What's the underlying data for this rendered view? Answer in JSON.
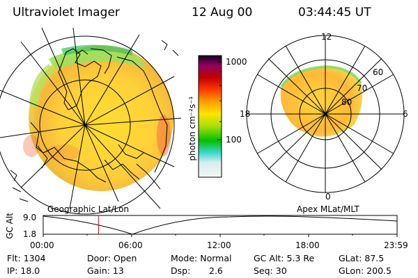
{
  "header": {
    "instrument": "Ultraviolet Imager",
    "date": "12 Aug 00",
    "time": "03:44:45 UT"
  },
  "colorbar": {
    "unit_label": "photon cm⁻²s⁻¹",
    "ticks": [
      "1000",
      "100"
    ]
  },
  "panels": {
    "geographic_label": "Geographic Lat/Lon",
    "apex_label": "Apex MLat/MLT",
    "mlt_labels": [
      "12",
      "18",
      "6",
      "0"
    ],
    "lat_labels": [
      "60",
      "70",
      "80"
    ]
  },
  "orbit": {
    "ylabel": "GC Alt",
    "y_ticks": [
      "9.0",
      "1.8"
    ],
    "x_ticks": [
      "00:00",
      "06:00",
      "12:00",
      "18:00",
      "23:59"
    ],
    "current_time_hours": 3.75
  },
  "info": {
    "flt": "Flt: 1304",
    "ip": "IP: 18.0",
    "door": "Door: Open",
    "gain": "Gain: 13",
    "mode": "Mode: Normal",
    "dsp_label": "Dsp:",
    "dsp_value": "2.6",
    "gc_alt": "GC Alt: 5.3 Re",
    "seq": "Seq: 30",
    "glat": "GLat: 87.5",
    "glon": "GLon: 200.5"
  },
  "colors": {
    "red_marker": "#e60000",
    "colorbar_stops": [
      "#f4f4f4",
      "#80e0e8",
      "#00c000",
      "#c8e000",
      "#ffe000",
      "#ff9a00",
      "#ff2000",
      "#b00000",
      "#a00060",
      "#200030"
    ]
  }
}
